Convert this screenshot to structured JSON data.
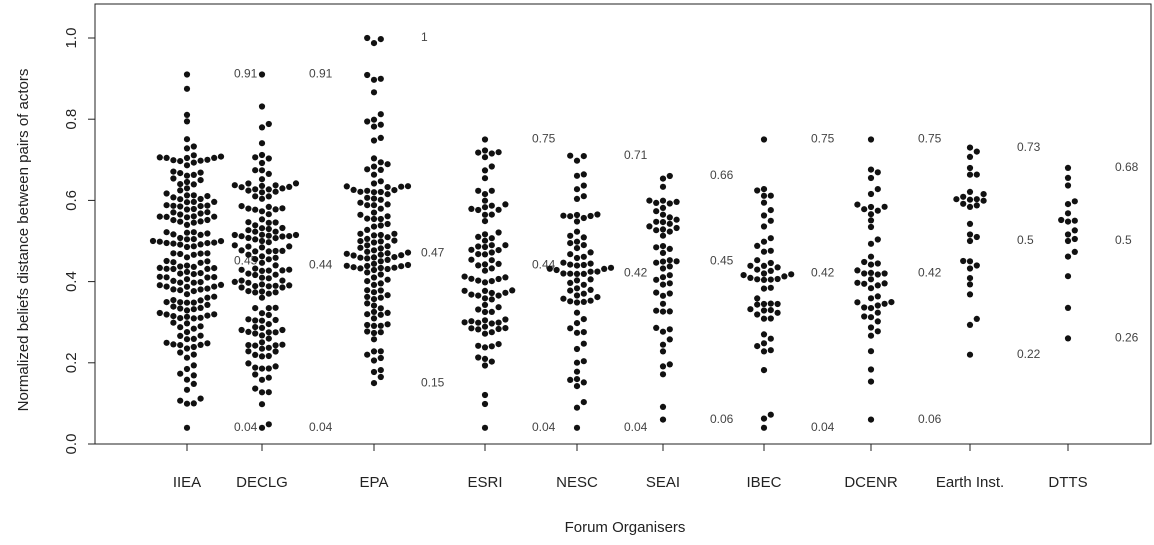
{
  "chart_data": {
    "type": "scatter",
    "subtype": "beeswarm",
    "xlabel": "Forum Organisers",
    "ylabel": "Normalized beliefs distance between pairs of actors",
    "ylim": [
      0,
      1.0
    ],
    "yticks": [
      "0.0",
      "0.2",
      "0.4",
      "0.6",
      "0.8",
      "1.0"
    ],
    "categories": [
      "IIEA",
      "DECLG",
      "EPA",
      "ESRI",
      "NESC",
      "SEAI",
      "IBEC",
      "DCENR",
      "Earth Inst.",
      "DTTS"
    ],
    "grid": false,
    "legend": "none",
    "marker_color": "#111111",
    "approx_distribution": [
      {
        "category": "IIEA",
        "n": 180,
        "min": 0.04,
        "median": 0.45,
        "max": 0.91,
        "spread": 0.17
      },
      {
        "category": "DECLG",
        "n": 150,
        "min": 0.04,
        "median": 0.44,
        "max": 0.91,
        "spread": 0.18
      },
      {
        "category": "EPA",
        "n": 130,
        "min": 0.15,
        "median": 0.47,
        "max": 1.0,
        "spread": 0.19
      },
      {
        "category": "ESRI",
        "n": 90,
        "min": 0.04,
        "median": 0.44,
        "max": 0.75,
        "spread": 0.16
      },
      {
        "category": "NESC",
        "n": 75,
        "min": 0.04,
        "median": 0.42,
        "max": 0.71,
        "spread": 0.15
      },
      {
        "category": "SEAI",
        "n": 55,
        "min": 0.06,
        "median": 0.45,
        "max": 0.66,
        "spread": 0.14
      },
      {
        "category": "IBEC",
        "n": 55,
        "min": 0.04,
        "median": 0.42,
        "max": 0.75,
        "spread": 0.17
      },
      {
        "category": "DCENR",
        "n": 50,
        "min": 0.06,
        "median": 0.42,
        "max": 0.75,
        "spread": 0.16
      },
      {
        "category": "Earth Inst.",
        "n": 30,
        "min": 0.22,
        "median": 0.5,
        "max": 0.73,
        "spread": 0.14
      },
      {
        "category": "DTTS",
        "n": 18,
        "min": 0.26,
        "median": 0.5,
        "max": 0.68,
        "spread": 0.11
      }
    ]
  }
}
